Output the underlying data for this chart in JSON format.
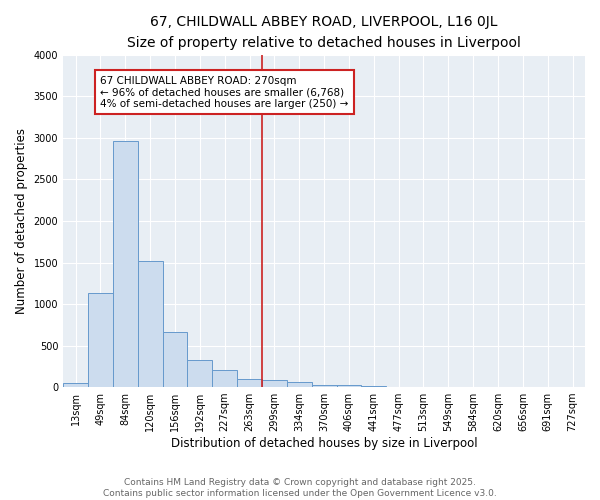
{
  "title": "67, CHILDWALL ABBEY ROAD, LIVERPOOL, L16 0JL",
  "subtitle": "Size of property relative to detached houses in Liverpool",
  "xlabel": "Distribution of detached houses by size in Liverpool",
  "ylabel": "Number of detached properties",
  "categories": [
    "13sqm",
    "49sqm",
    "84sqm",
    "120sqm",
    "156sqm",
    "192sqm",
    "227sqm",
    "263sqm",
    "299sqm",
    "334sqm",
    "370sqm",
    "406sqm",
    "441sqm",
    "477sqm",
    "513sqm",
    "549sqm",
    "584sqm",
    "620sqm",
    "656sqm",
    "691sqm",
    "727sqm"
  ],
  "values": [
    50,
    1130,
    2960,
    1520,
    660,
    330,
    200,
    100,
    90,
    60,
    30,
    20,
    10,
    5,
    2,
    1,
    0,
    0,
    0,
    0,
    0
  ],
  "bar_color": "#ccdcee",
  "bar_edge_color": "#6699cc",
  "bar_edge_width": 0.7,
  "red_line_index": 7,
  "red_line_color": "#cc2222",
  "annotation_text": "67 CHILDWALL ABBEY ROAD: 270sqm\n← 96% of detached houses are smaller (6,768)\n4% of semi-detached houses are larger (250) →",
  "annotation_box_facecolor": "#ffffff",
  "annotation_box_edgecolor": "#cc2222",
  "figure_bg": "#ffffff",
  "axes_bg": "#e8eef4",
  "grid_color": "#ffffff",
  "ylim": [
    0,
    4000
  ],
  "yticks": [
    0,
    500,
    1000,
    1500,
    2000,
    2500,
    3000,
    3500,
    4000
  ],
  "footer_line1": "Contains HM Land Registry data © Crown copyright and database right 2025.",
  "footer_line2": "Contains public sector information licensed under the Open Government Licence v3.0.",
  "title_fontsize": 10,
  "subtitle_fontsize": 9,
  "axis_label_fontsize": 8.5,
  "tick_fontsize": 7,
  "annotation_fontsize": 7.5,
  "footer_fontsize": 6.5
}
